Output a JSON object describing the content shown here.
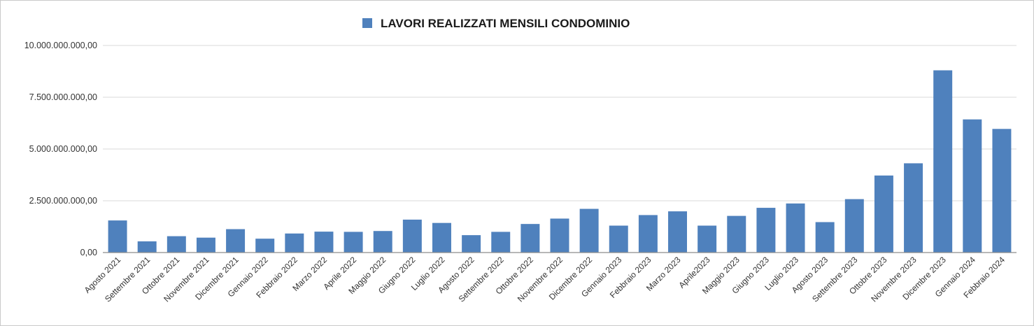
{
  "chart_data": {
    "type": "bar",
    "title": "",
    "legend": {
      "position": "top-center",
      "entries": [
        "LAVORI REALIZZATI MENSILI CONDOMINIO"
      ]
    },
    "series": [
      {
        "name": "LAVORI REALIZZATI MENSILI CONDOMINIO",
        "color": "#4f81bd",
        "values": [
          1550000000,
          540000000,
          790000000,
          720000000,
          1130000000,
          670000000,
          920000000,
          1010000000,
          1000000000,
          1040000000,
          1590000000,
          1430000000,
          840000000,
          1000000000,
          1380000000,
          1640000000,
          2110000000,
          1300000000,
          1810000000,
          1990000000,
          1300000000,
          1770000000,
          2160000000,
          2370000000,
          1470000000,
          2580000000,
          3720000000,
          4310000000,
          8800000000,
          6430000000,
          5970000000
        ]
      }
    ],
    "categories": [
      "Agosto 2021",
      "Settembre 2021",
      "Ottobre 2021",
      "Novembre 2021",
      "Dicembre 2021",
      "Gennaio 2022",
      "Febbraio 2022",
      "Marzo 2022",
      "Aprile 2022",
      "Maggio 2022",
      "Giugno 2022",
      "Luglio 2022",
      "Agosto 2022",
      "Settembre 2022",
      "Ottobre 2022",
      "Novembre 2022",
      "Dicembre 2022",
      "Gennaio 2023",
      "Febbraio 2023",
      "Marzo 2023",
      "Aprile2023",
      "Maggio 2023",
      "Giugno 2023",
      "Luglio 2023",
      "Agosto 2023",
      "Settembre 2023",
      "Ottobre 2023",
      "Novembre 2023",
      "Dicembre 2023",
      "Gennaio 2024",
      "Febbraio 2024"
    ],
    "ylim": [
      0,
      10000000000
    ],
    "yticks": [
      0,
      2500000000,
      5000000000,
      7500000000,
      10000000000
    ],
    "ytick_labels": [
      "0,00",
      "2.500.000.000,00",
      "5.000.000.000,00",
      "7.500.000.000,00",
      "10.000.000.000,00"
    ],
    "xlabel": "",
    "ylabel": "",
    "grid": true
  }
}
